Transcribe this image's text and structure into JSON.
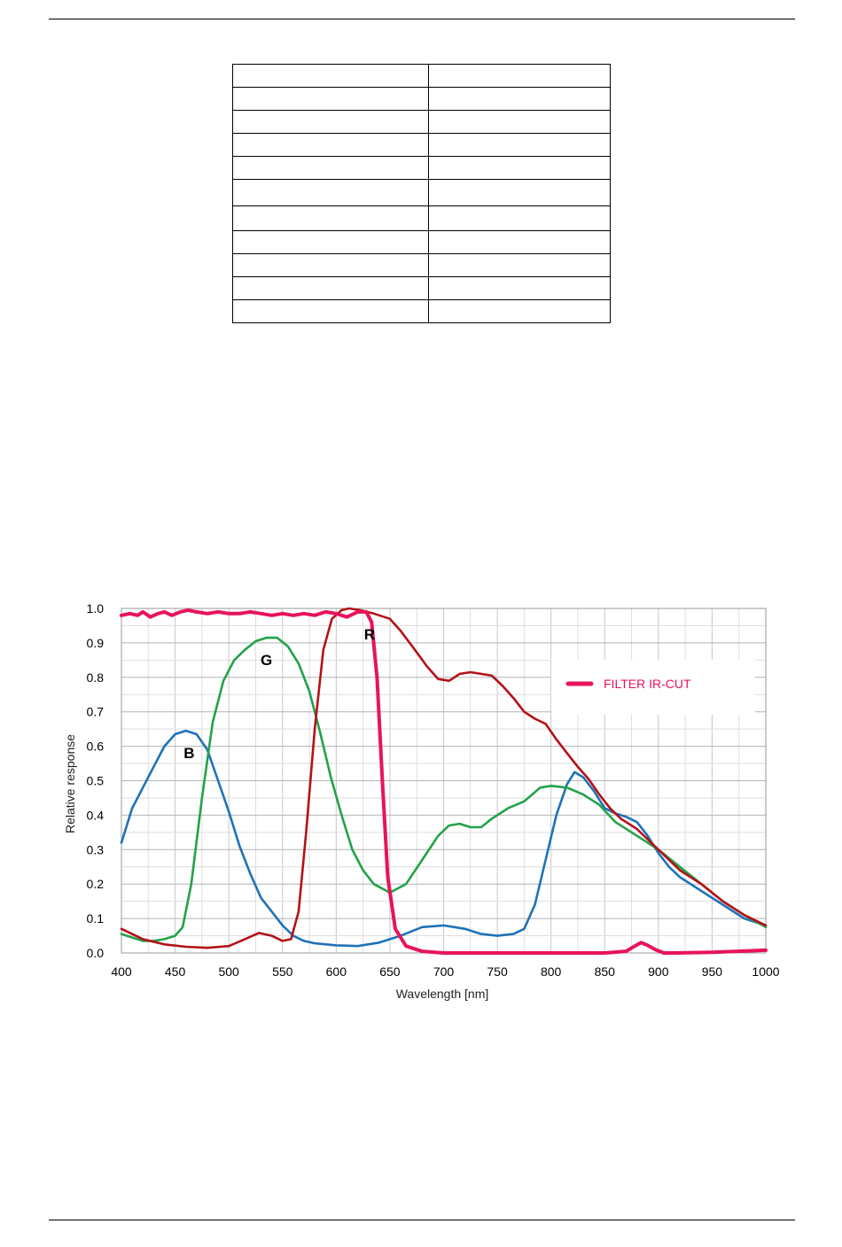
{
  "table": {
    "rows": [
      [
        "",
        ""
      ],
      [
        "",
        ""
      ],
      [
        "",
        ""
      ],
      [
        "",
        ""
      ],
      [
        "",
        ""
      ],
      [
        "",
        ""
      ],
      [
        "",
        ""
      ],
      [
        "",
        ""
      ],
      [
        "",
        ""
      ],
      [
        "",
        ""
      ],
      [
        "",
        ""
      ]
    ]
  },
  "chart_data": {
    "type": "line",
    "title": "",
    "xlabel": "Wavelength [nm]",
    "ylabel": "Relative response",
    "xlim": [
      400,
      1000
    ],
    "ylim": [
      0,
      1.0
    ],
    "xticks": [
      400,
      450,
      500,
      550,
      600,
      650,
      700,
      750,
      800,
      850,
      900,
      950,
      1000
    ],
    "yticks": [
      0.0,
      0.1,
      0.2,
      0.3,
      0.4,
      0.5,
      0.6,
      0.7,
      0.8,
      0.9,
      1.0
    ],
    "grid": true,
    "legend_position": "right",
    "curve_labels": [
      {
        "text": "B",
        "x": 463,
        "y": 0.565
      },
      {
        "text": "G",
        "x": 535,
        "y": 0.835
      },
      {
        "text": "R",
        "x": 631,
        "y": 0.91
      }
    ],
    "series": [
      {
        "name": "B",
        "color": "#1f72b8",
        "points": [
          [
            400,
            0.32
          ],
          [
            410,
            0.42
          ],
          [
            420,
            0.48
          ],
          [
            430,
            0.54
          ],
          [
            440,
            0.6
          ],
          [
            450,
            0.635
          ],
          [
            460,
            0.645
          ],
          [
            470,
            0.635
          ],
          [
            480,
            0.59
          ],
          [
            490,
            0.5
          ],
          [
            500,
            0.41
          ],
          [
            510,
            0.31
          ],
          [
            520,
            0.23
          ],
          [
            530,
            0.16
          ],
          [
            540,
            0.12
          ],
          [
            550,
            0.08
          ],
          [
            560,
            0.05
          ],
          [
            570,
            0.035
          ],
          [
            580,
            0.028
          ],
          [
            600,
            0.022
          ],
          [
            620,
            0.02
          ],
          [
            640,
            0.03
          ],
          [
            660,
            0.05
          ],
          [
            680,
            0.075
          ],
          [
            700,
            0.08
          ],
          [
            720,
            0.07
          ],
          [
            735,
            0.055
          ],
          [
            750,
            0.05
          ],
          [
            765,
            0.055
          ],
          [
            775,
            0.07
          ],
          [
            785,
            0.14
          ],
          [
            795,
            0.27
          ],
          [
            805,
            0.4
          ],
          [
            815,
            0.49
          ],
          [
            822,
            0.525
          ],
          [
            830,
            0.51
          ],
          [
            840,
            0.47
          ],
          [
            850,
            0.42
          ],
          [
            860,
            0.405
          ],
          [
            870,
            0.395
          ],
          [
            880,
            0.38
          ],
          [
            890,
            0.34
          ],
          [
            900,
            0.29
          ],
          [
            910,
            0.25
          ],
          [
            920,
            0.22
          ],
          [
            940,
            0.18
          ],
          [
            960,
            0.14
          ],
          [
            980,
            0.1
          ],
          [
            1000,
            0.08
          ]
        ]
      },
      {
        "name": "G",
        "color": "#22a24a",
        "points": [
          [
            400,
            0.055
          ],
          [
            410,
            0.045
          ],
          [
            420,
            0.035
          ],
          [
            430,
            0.035
          ],
          [
            440,
            0.04
          ],
          [
            450,
            0.05
          ],
          [
            457,
            0.075
          ],
          [
            465,
            0.2
          ],
          [
            475,
            0.45
          ],
          [
            485,
            0.67
          ],
          [
            495,
            0.79
          ],
          [
            505,
            0.85
          ],
          [
            515,
            0.88
          ],
          [
            525,
            0.905
          ],
          [
            535,
            0.915
          ],
          [
            545,
            0.915
          ],
          [
            555,
            0.89
          ],
          [
            565,
            0.84
          ],
          [
            575,
            0.76
          ],
          [
            585,
            0.64
          ],
          [
            595,
            0.51
          ],
          [
            605,
            0.4
          ],
          [
            615,
            0.3
          ],
          [
            625,
            0.24
          ],
          [
            635,
            0.2
          ],
          [
            650,
            0.175
          ],
          [
            665,
            0.2
          ],
          [
            680,
            0.27
          ],
          [
            695,
            0.34
          ],
          [
            705,
            0.37
          ],
          [
            715,
            0.375
          ],
          [
            725,
            0.365
          ],
          [
            735,
            0.365
          ],
          [
            745,
            0.39
          ],
          [
            760,
            0.42
          ],
          [
            775,
            0.44
          ],
          [
            790,
            0.48
          ],
          [
            800,
            0.485
          ],
          [
            815,
            0.48
          ],
          [
            830,
            0.46
          ],
          [
            845,
            0.43
          ],
          [
            860,
            0.38
          ],
          [
            880,
            0.34
          ],
          [
            900,
            0.3
          ],
          [
            920,
            0.25
          ],
          [
            940,
            0.2
          ],
          [
            960,
            0.15
          ],
          [
            980,
            0.11
          ],
          [
            1000,
            0.075
          ]
        ]
      },
      {
        "name": "R",
        "color": "#b31217",
        "points": [
          [
            400,
            0.07
          ],
          [
            410,
            0.055
          ],
          [
            420,
            0.04
          ],
          [
            440,
            0.025
          ],
          [
            460,
            0.018
          ],
          [
            480,
            0.015
          ],
          [
            500,
            0.02
          ],
          [
            515,
            0.04
          ],
          [
            528,
            0.058
          ],
          [
            540,
            0.05
          ],
          [
            550,
            0.035
          ],
          [
            558,
            0.04
          ],
          [
            565,
            0.12
          ],
          [
            572,
            0.35
          ],
          [
            580,
            0.65
          ],
          [
            588,
            0.88
          ],
          [
            596,
            0.97
          ],
          [
            605,
            0.995
          ],
          [
            612,
            1.0
          ],
          [
            622,
            0.995
          ],
          [
            635,
            0.985
          ],
          [
            650,
            0.97
          ],
          [
            660,
            0.935
          ],
          [
            672,
            0.885
          ],
          [
            685,
            0.83
          ],
          [
            695,
            0.795
          ],
          [
            705,
            0.79
          ],
          [
            715,
            0.81
          ],
          [
            725,
            0.815
          ],
          [
            735,
            0.81
          ],
          [
            745,
            0.805
          ],
          [
            755,
            0.775
          ],
          [
            765,
            0.74
          ],
          [
            775,
            0.7
          ],
          [
            785,
            0.68
          ],
          [
            795,
            0.665
          ],
          [
            805,
            0.62
          ],
          [
            815,
            0.58
          ],
          [
            825,
            0.54
          ],
          [
            835,
            0.505
          ],
          [
            845,
            0.46
          ],
          [
            855,
            0.42
          ],
          [
            865,
            0.39
          ],
          [
            880,
            0.36
          ],
          [
            900,
            0.3
          ],
          [
            920,
            0.24
          ],
          [
            940,
            0.2
          ],
          [
            960,
            0.15
          ],
          [
            980,
            0.11
          ],
          [
            1000,
            0.08
          ]
        ]
      },
      {
        "name": "FILTER IR-CUT",
        "color": "#e8135b",
        "points": [
          [
            400,
            0.98
          ],
          [
            408,
            0.985
          ],
          [
            415,
            0.98
          ],
          [
            420,
            0.99
          ],
          [
            427,
            0.975
          ],
          [
            434,
            0.985
          ],
          [
            440,
            0.99
          ],
          [
            447,
            0.98
          ],
          [
            455,
            0.99
          ],
          [
            462,
            0.995
          ],
          [
            470,
            0.99
          ],
          [
            480,
            0.985
          ],
          [
            490,
            0.99
          ],
          [
            500,
            0.985
          ],
          [
            510,
            0.985
          ],
          [
            520,
            0.99
          ],
          [
            530,
            0.985
          ],
          [
            540,
            0.98
          ],
          [
            550,
            0.985
          ],
          [
            560,
            0.98
          ],
          [
            570,
            0.985
          ],
          [
            580,
            0.98
          ],
          [
            590,
            0.99
          ],
          [
            600,
            0.985
          ],
          [
            610,
            0.975
          ],
          [
            620,
            0.99
          ],
          [
            628,
            0.99
          ],
          [
            633,
            0.96
          ],
          [
            638,
            0.8
          ],
          [
            643,
            0.5
          ],
          [
            648,
            0.22
          ],
          [
            655,
            0.07
          ],
          [
            665,
            0.02
          ],
          [
            680,
            0.005
          ],
          [
            700,
            0.0
          ],
          [
            750,
            0.0
          ],
          [
            800,
            0.0
          ],
          [
            850,
            0.0
          ],
          [
            870,
            0.005
          ],
          [
            878,
            0.02
          ],
          [
            884,
            0.03
          ],
          [
            890,
            0.022
          ],
          [
            897,
            0.01
          ],
          [
            905,
            0.0
          ],
          [
            915,
            0.0
          ],
          [
            950,
            0.002
          ],
          [
            1000,
            0.008
          ]
        ]
      }
    ]
  }
}
